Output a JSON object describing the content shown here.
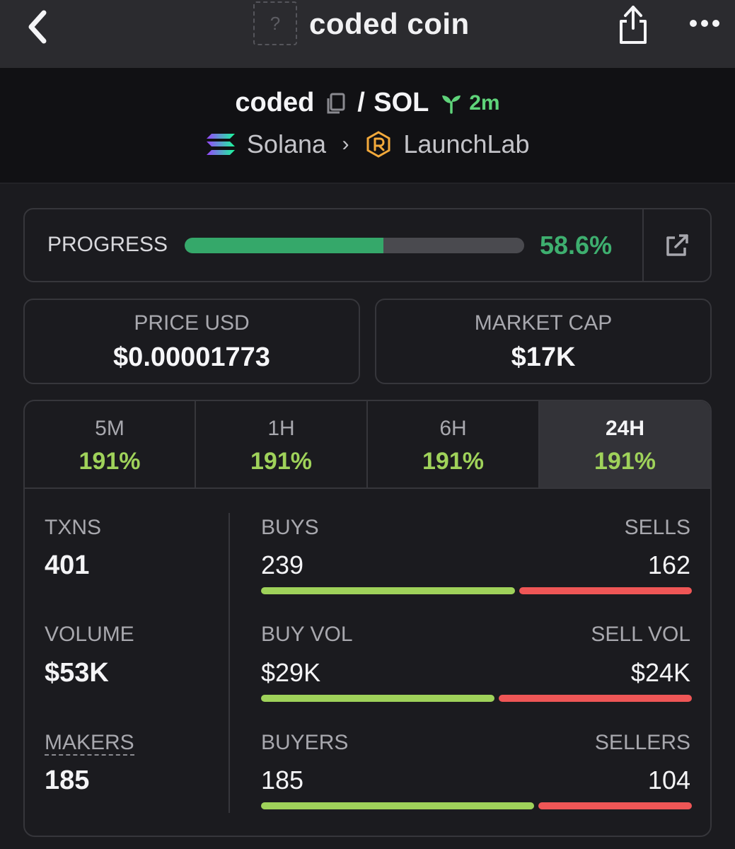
{
  "header": {
    "title": "coded coin",
    "token_placeholder": "?",
    "icons": {
      "back": "back-chevron-icon",
      "share": "share-icon",
      "more": "more-dots-icon"
    }
  },
  "pair": {
    "base": "coded",
    "separator": "/",
    "quote": "SOL",
    "age": "2m",
    "chain": "Solana",
    "dex": "LaunchLab",
    "icons": {
      "copy": "copy-icon",
      "age": "sprout-icon",
      "chain": "solana-logo-icon",
      "dex": "launchlab-logo-icon",
      "crumb": "chevron-right-icon"
    }
  },
  "progress": {
    "label": "PROGRESS",
    "value": 58.6,
    "display": "58.6%",
    "icon": "external-link-icon"
  },
  "stats": {
    "price": {
      "label": "PRICE USD",
      "value": "$0.00001773"
    },
    "market_cap": {
      "label": "MARKET CAP",
      "value": "$17K"
    }
  },
  "timeframes": [
    {
      "label": "5M",
      "change": "191%",
      "active": false
    },
    {
      "label": "1H",
      "change": "191%",
      "active": false
    },
    {
      "label": "6H",
      "change": "191%",
      "active": false
    },
    {
      "label": "24H",
      "change": "191%",
      "active": true
    }
  ],
  "metrics": {
    "txns": {
      "label": "TXNS",
      "value": "401"
    },
    "volume": {
      "label": "VOLUME",
      "value": "$53K"
    },
    "makers": {
      "label": "MAKERS",
      "value": "185"
    }
  },
  "buy_sell": [
    {
      "buy_label": "BUYS",
      "sell_label": "SELLS",
      "buy_value": "239",
      "sell_value": "162",
      "buy_amount": 239,
      "sell_amount": 162
    },
    {
      "buy_label": "BUY VOL",
      "sell_label": "SELL VOL",
      "buy_value": "$29K",
      "sell_value": "$24K",
      "buy_amount": 29,
      "sell_amount": 24
    },
    {
      "buy_label": "BUYERS",
      "sell_label": "SELLERS",
      "buy_value": "185",
      "sell_value": "104",
      "buy_amount": 185,
      "sell_amount": 104
    }
  ],
  "colors": {
    "accent_green": "#3eaf6f",
    "change_green": "#9fd25a",
    "sell_red": "#ef5656",
    "background": "#1b1b1f"
  }
}
